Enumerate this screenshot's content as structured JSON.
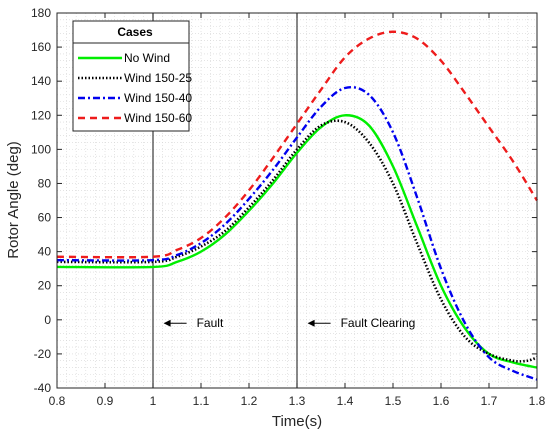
{
  "chart_data": {
    "type": "line",
    "title": "",
    "xlabel": "Time(s)",
    "ylabel": "Rotor Angle (deg)",
    "xlim": [
      0.8,
      1.8
    ],
    "ylim": [
      -40,
      180
    ],
    "xticks": [
      0.8,
      0.9,
      1.0,
      1.1,
      1.2,
      1.3,
      1.4,
      1.5,
      1.6,
      1.7,
      1.8
    ],
    "xtick_labels": [
      "0.8",
      "0.9",
      "1",
      "1.1",
      "1.2",
      "1.3",
      "1.4",
      "1.5",
      "1.6",
      "1.7",
      "1.8"
    ],
    "yticks": [
      -40,
      -20,
      0,
      20,
      40,
      60,
      80,
      100,
      120,
      140,
      160,
      180
    ],
    "ytick_labels": [
      "-40",
      "-20",
      "0",
      "20",
      "40",
      "60",
      "80",
      "100",
      "120",
      "140",
      "160",
      "180"
    ],
    "grid": "minor-dotted",
    "legend": {
      "title": "Cases",
      "placement": "top-left"
    },
    "vlines": [
      1.0,
      1.3
    ],
    "annotations": [
      {
        "text": "Fault",
        "x": 1.02,
        "y": -2
      },
      {
        "text": "Fault Clearing",
        "x": 1.32,
        "y": -2
      }
    ],
    "series": [
      {
        "name": "No Wind",
        "color": "#00ee00",
        "style": "solid",
        "x": [
          0.8,
          1.0,
          1.05,
          1.1,
          1.15,
          1.2,
          1.25,
          1.3,
          1.35,
          1.4,
          1.45,
          1.5,
          1.55,
          1.6,
          1.65,
          1.7,
          1.75,
          1.8
        ],
        "y": [
          31,
          31,
          34,
          40,
          50,
          64,
          80,
          98,
          113,
          120,
          114,
          90,
          55,
          20,
          -5,
          -20,
          -25,
          -28
        ]
      },
      {
        "name": "Wind 150-25",
        "color": "#000000",
        "style": "dotted",
        "x": [
          0.8,
          1.0,
          1.05,
          1.1,
          1.15,
          1.2,
          1.25,
          1.3,
          1.35,
          1.4,
          1.45,
          1.5,
          1.55,
          1.6,
          1.65,
          1.7,
          1.75,
          1.78,
          1.8
        ],
        "y": [
          34,
          34,
          37,
          43,
          52,
          66,
          82,
          100,
          114,
          116,
          104,
          80,
          45,
          12,
          -10,
          -20,
          -24,
          -24,
          -22
        ]
      },
      {
        "name": "Wind 150-40",
        "color": "#0000ee",
        "style": "dashdot",
        "x": [
          0.8,
          1.0,
          1.05,
          1.1,
          1.15,
          1.2,
          1.25,
          1.3,
          1.35,
          1.4,
          1.45,
          1.5,
          1.55,
          1.6,
          1.65,
          1.7,
          1.75,
          1.8
        ],
        "y": [
          35,
          35,
          38,
          45,
          56,
          71,
          88,
          107,
          125,
          136,
          132,
          110,
          72,
          30,
          -2,
          -22,
          -30,
          -35
        ]
      },
      {
        "name": "Wind 150-60",
        "color": "#ee1c1c",
        "style": "dashed",
        "x": [
          0.8,
          1.0,
          1.05,
          1.1,
          1.15,
          1.2,
          1.25,
          1.3,
          1.35,
          1.4,
          1.45,
          1.5,
          1.55,
          1.6,
          1.65,
          1.7,
          1.75,
          1.8
        ],
        "y": [
          37,
          37,
          41,
          48,
          60,
          76,
          95,
          115,
          135,
          154,
          165,
          169,
          165,
          152,
          133,
          113,
          93,
          70
        ]
      }
    ]
  }
}
